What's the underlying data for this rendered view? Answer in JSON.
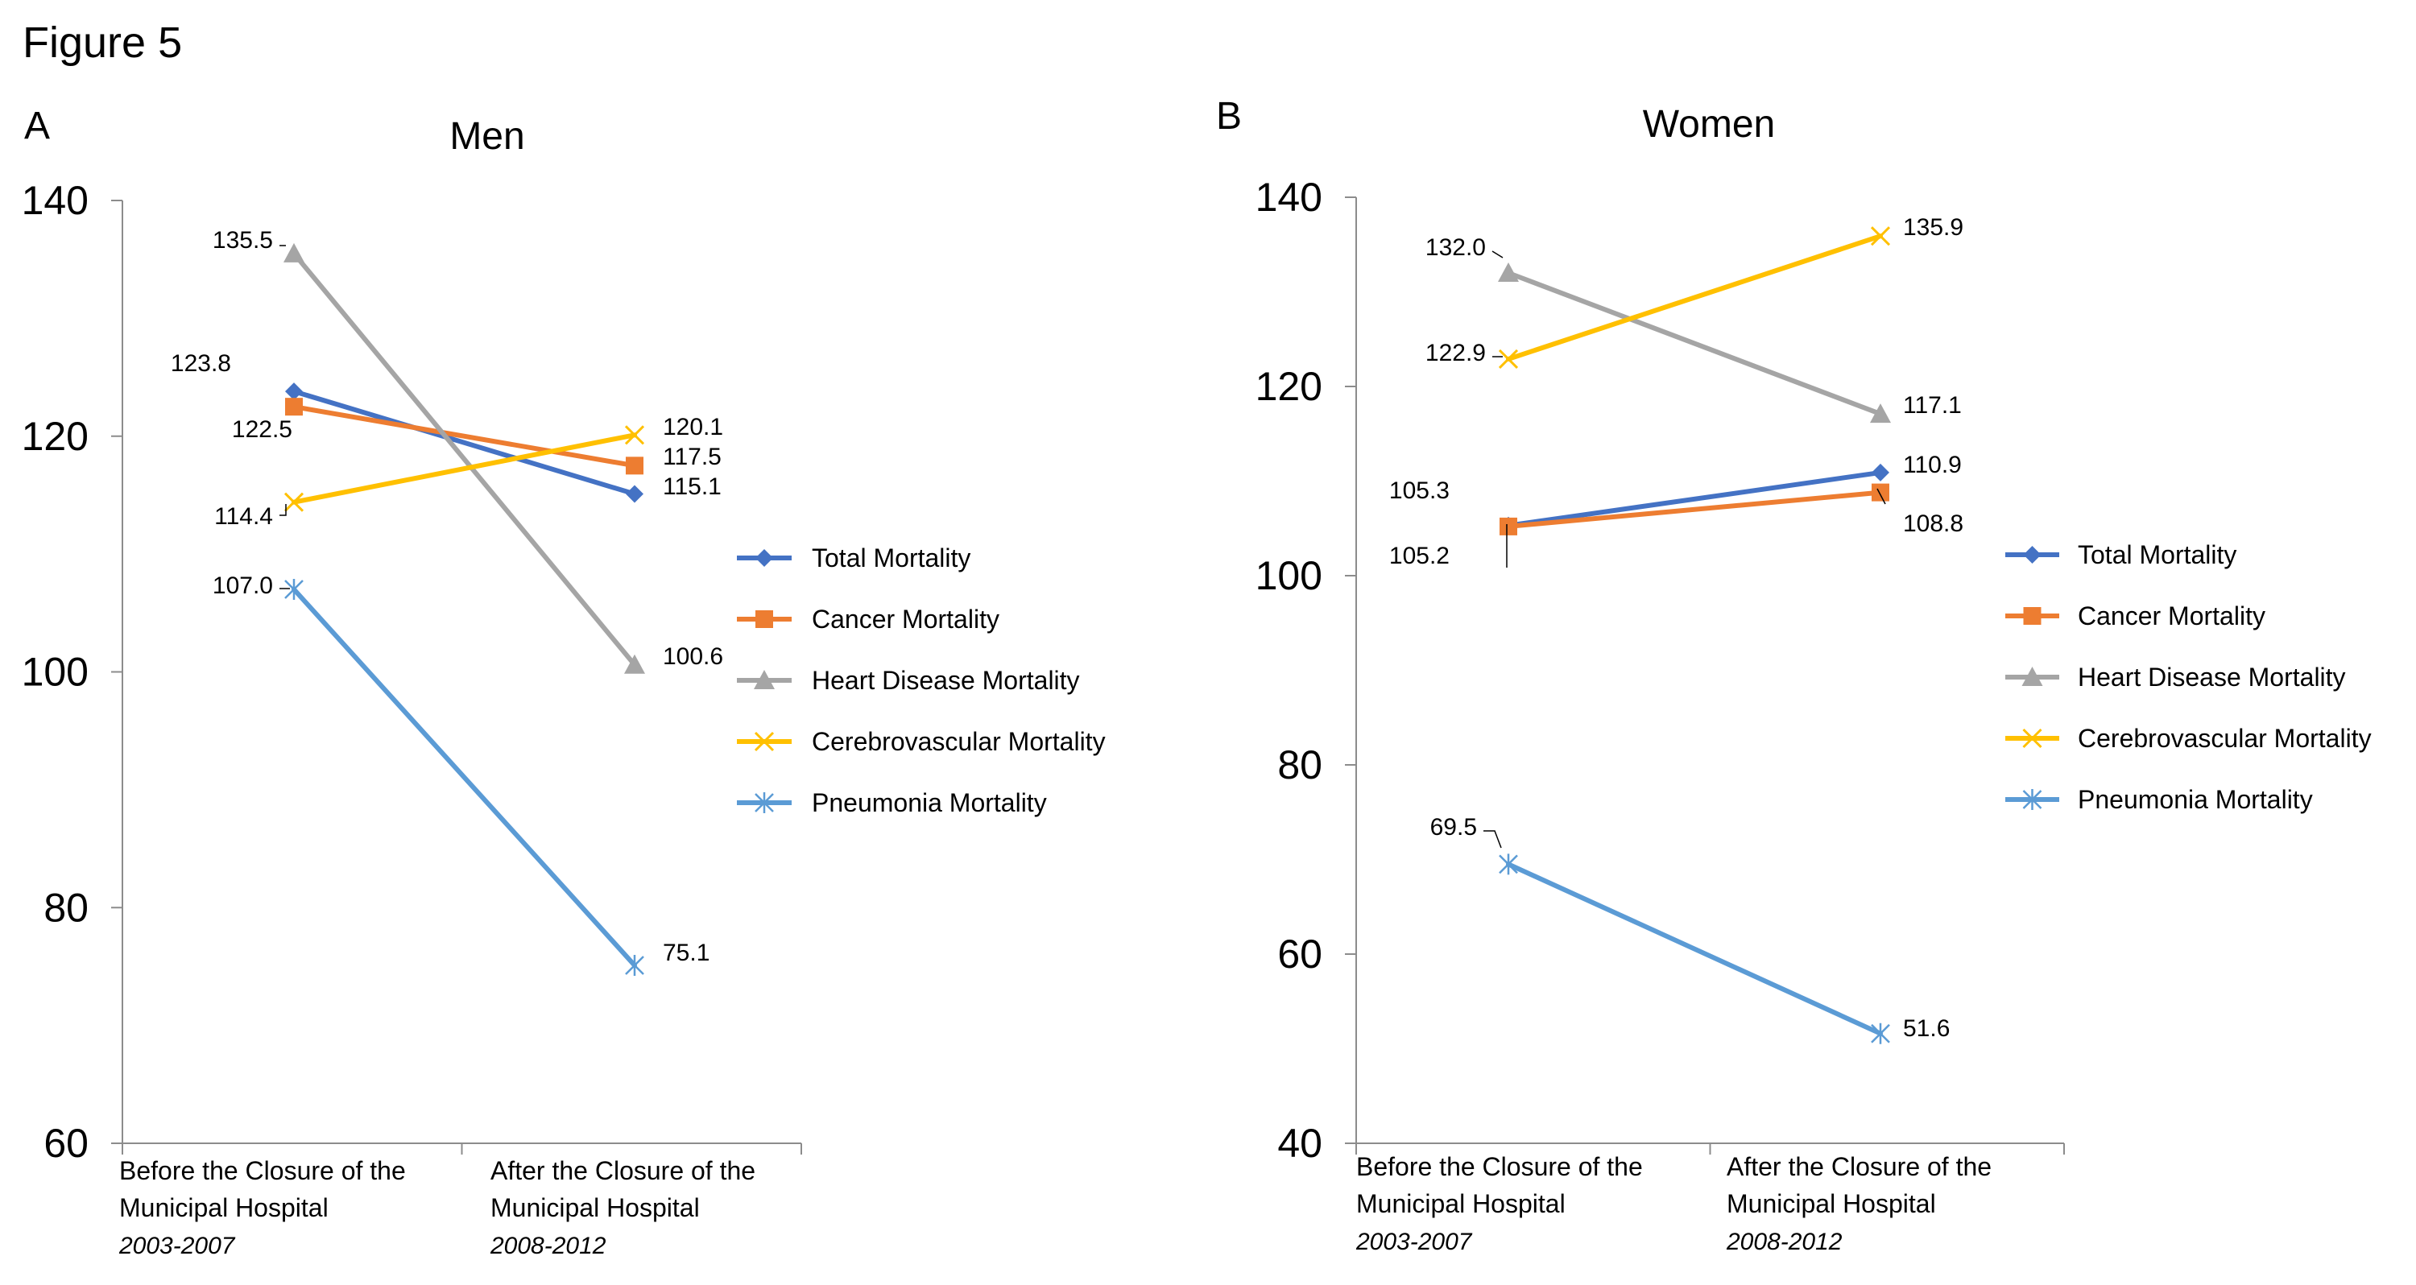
{
  "figure_title": "Figure 5",
  "chart_data": [
    {
      "type": "line",
      "panel": "A",
      "title": "Men",
      "categories": [
        {
          "line1": "Before the Closure of the",
          "line2": "Municipal Hospital",
          "period": "2003-2007"
        },
        {
          "line1": "After the Closure of the",
          "line2": "Municipal Hospital",
          "period": "2008-2012"
        }
      ],
      "ylim": [
        60,
        140
      ],
      "yticks": [
        60,
        80,
        100,
        120,
        140
      ],
      "grid": false,
      "legend_position": "right",
      "series": [
        {
          "name": "Total Mortality",
          "values": [
            123.8,
            115.1
          ],
          "labels": [
            "123.8",
            "115.1"
          ],
          "color": "#4472C4",
          "marker": "diamond"
        },
        {
          "name": "Cancer Mortality",
          "values": [
            122.5,
            117.5
          ],
          "labels": [
            "122.5",
            "117.5"
          ],
          "color": "#ED7D31",
          "marker": "square"
        },
        {
          "name": "Heart Disease Mortality",
          "values": [
            135.5,
            100.6
          ],
          "labels": [
            "135.5",
            "100.6"
          ],
          "color": "#A5A5A5",
          "marker": "triangle"
        },
        {
          "name": "Cerebrovascular Mortality",
          "values": [
            114.4,
            120.1
          ],
          "labels": [
            "114.4",
            "120.1"
          ],
          "color": "#FFC000",
          "marker": "x"
        },
        {
          "name": "Pneumonia Mortality",
          "values": [
            107.0,
            75.1
          ],
          "labels": [
            "107.0",
            "75.1"
          ],
          "color": "#5B9BD5",
          "marker": "star"
        }
      ]
    },
    {
      "type": "line",
      "panel": "B",
      "title": "Women",
      "categories": [
        {
          "line1": "Before the Closure of the",
          "line2": "Municipal Hospital",
          "period": "2003-2007"
        },
        {
          "line1": "After the Closure of the",
          "line2": "Municipal Hospital",
          "period": "2008-2012"
        }
      ],
      "ylim": [
        40,
        140
      ],
      "yticks": [
        40,
        60,
        80,
        100,
        120,
        140
      ],
      "grid": false,
      "legend_position": "right",
      "series": [
        {
          "name": "Total Mortality",
          "values": [
            105.3,
            110.9
          ],
          "labels": [
            "105.3",
            "110.9"
          ],
          "color": "#4472C4",
          "marker": "diamond"
        },
        {
          "name": "Cancer Mortality",
          "values": [
            105.2,
            108.8
          ],
          "labels": [
            "105.2",
            "108.8"
          ],
          "color": "#ED7D31",
          "marker": "square"
        },
        {
          "name": "Heart Disease Mortality",
          "values": [
            132.0,
            117.1
          ],
          "labels": [
            "132.0",
            "117.1"
          ],
          "color": "#A5A5A5",
          "marker": "triangle"
        },
        {
          "name": "Cerebrovascular Mortality",
          "values": [
            122.9,
            135.9
          ],
          "labels": [
            "122.9",
            "135.9"
          ],
          "color": "#FFC000",
          "marker": "x"
        },
        {
          "name": "Pneumonia Mortality",
          "values": [
            69.5,
            51.6
          ],
          "labels": [
            "69.5",
            "51.6"
          ],
          "color": "#5B9BD5",
          "marker": "star"
        }
      ]
    }
  ]
}
